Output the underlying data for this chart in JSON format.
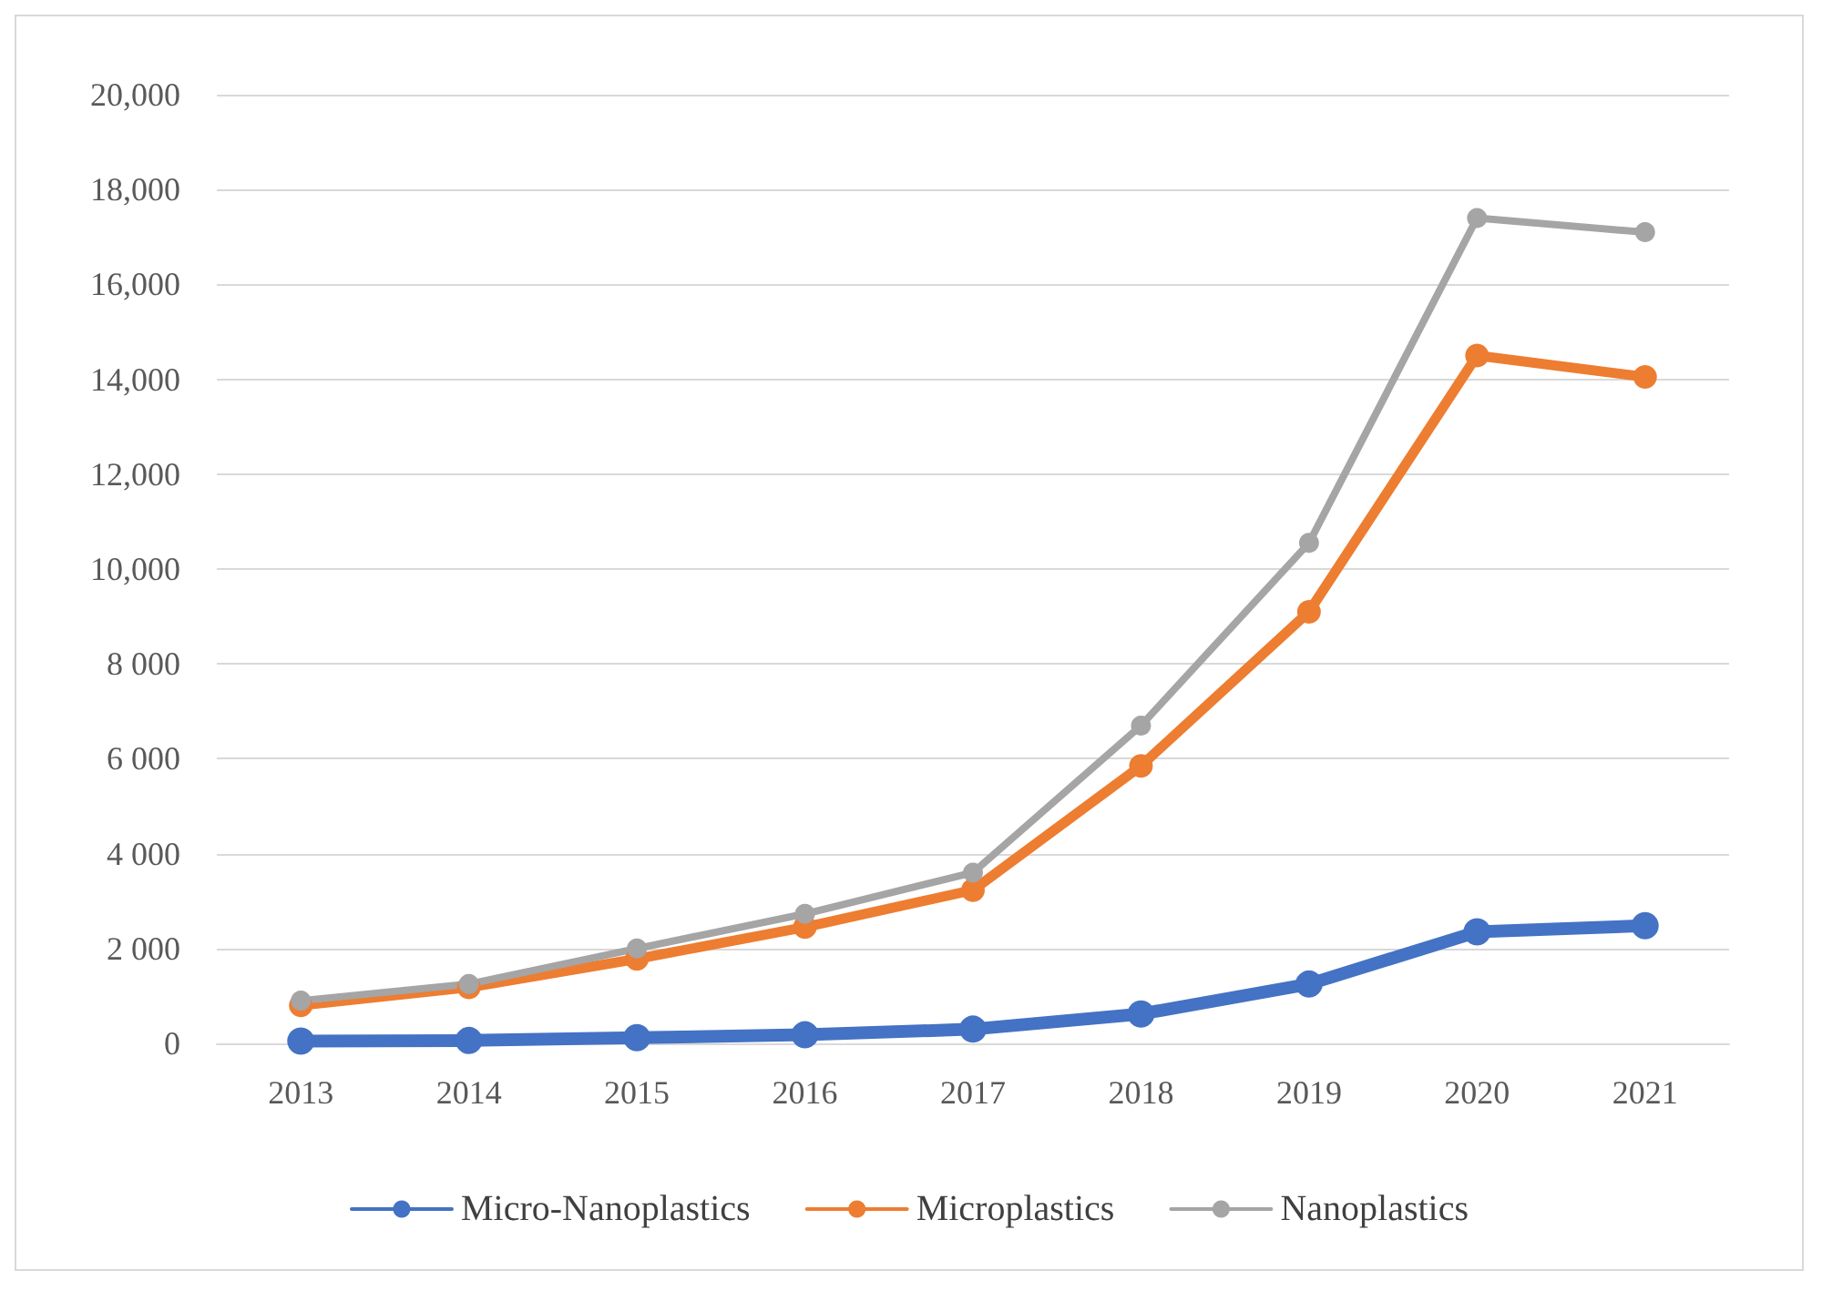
{
  "chart_data": {
    "type": "line",
    "categories": [
      "2013",
      "2014",
      "2015",
      "2016",
      "2017",
      "2018",
      "2019",
      "2020",
      "2021"
    ],
    "series": [
      {
        "name": "Micro-Nanoplastics",
        "color": "#4472c4",
        "values": [
          50,
          60,
          120,
          180,
          300,
          620,
          1250,
          2350,
          2480
        ]
      },
      {
        "name": "Microplastics",
        "color": "#ed7d31",
        "values": [
          800,
          1180,
          1780,
          2450,
          3230,
          5850,
          9100,
          14500,
          14050
        ]
      },
      {
        "name": "Nanoplastics",
        "color": "#a5a5a5",
        "values": [
          900,
          1250,
          2000,
          2730,
          3600,
          6700,
          10550,
          17400,
          17100
        ]
      }
    ],
    "ylim": [
      0,
      20000
    ],
    "yticks": [
      {
        "value": 0,
        "label": "0"
      },
      {
        "value": 2000,
        "label": "2 000"
      },
      {
        "value": 4000,
        "label": "4 000"
      },
      {
        "value": 6000,
        "label": "6 000"
      },
      {
        "value": 8000,
        "label": "8 000"
      },
      {
        "value": 10000,
        "label": "10,000"
      },
      {
        "value": 12000,
        "label": "12,000"
      },
      {
        "value": 14000,
        "label": "14,000"
      },
      {
        "value": 16000,
        "label": "16,000"
      },
      {
        "value": 18000,
        "label": "18,000"
      },
      {
        "value": 20000,
        "label": "20,000"
      }
    ],
    "grid": "y",
    "legend": "bottom",
    "marker": "circle",
    "line_style": "solid"
  }
}
